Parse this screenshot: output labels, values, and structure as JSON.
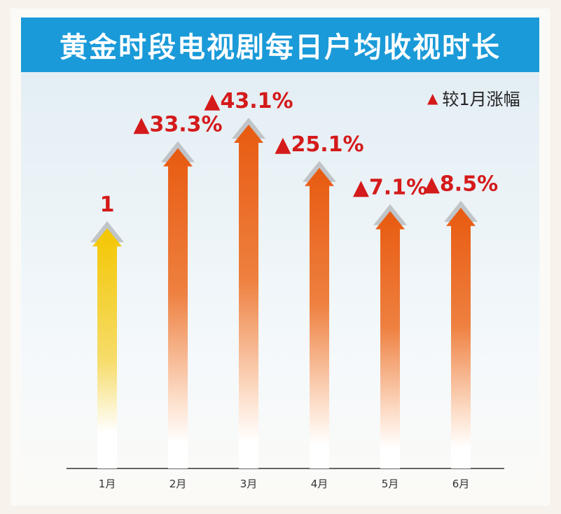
{
  "title": "黄金时段电视剧每日户均收视时长",
  "legend": {
    "marker": "▲",
    "label": "较1月涨幅"
  },
  "colors": {
    "title_bg": "#1a9ad8",
    "label": "#d41a1a",
    "base_arrow": "#f3c600",
    "growth_arrow": "#e85a10"
  },
  "chart_data": {
    "type": "bar",
    "title": "黄金时段电视剧每日户均收视时长",
    "categories": [
      "1月",
      "2月",
      "3月",
      "4月",
      "5月",
      "6月"
    ],
    "values": [
      1,
      1.333,
      1.431,
      1.251,
      1.071,
      1.085
    ],
    "labels": [
      "1",
      "▲33.3%",
      "▲43.1%",
      "▲25.1%",
      "▲7.1%",
      "▲8.5%"
    ],
    "legend": "较1月涨幅",
    "legend_position": "top-right",
    "grid": false
  }
}
